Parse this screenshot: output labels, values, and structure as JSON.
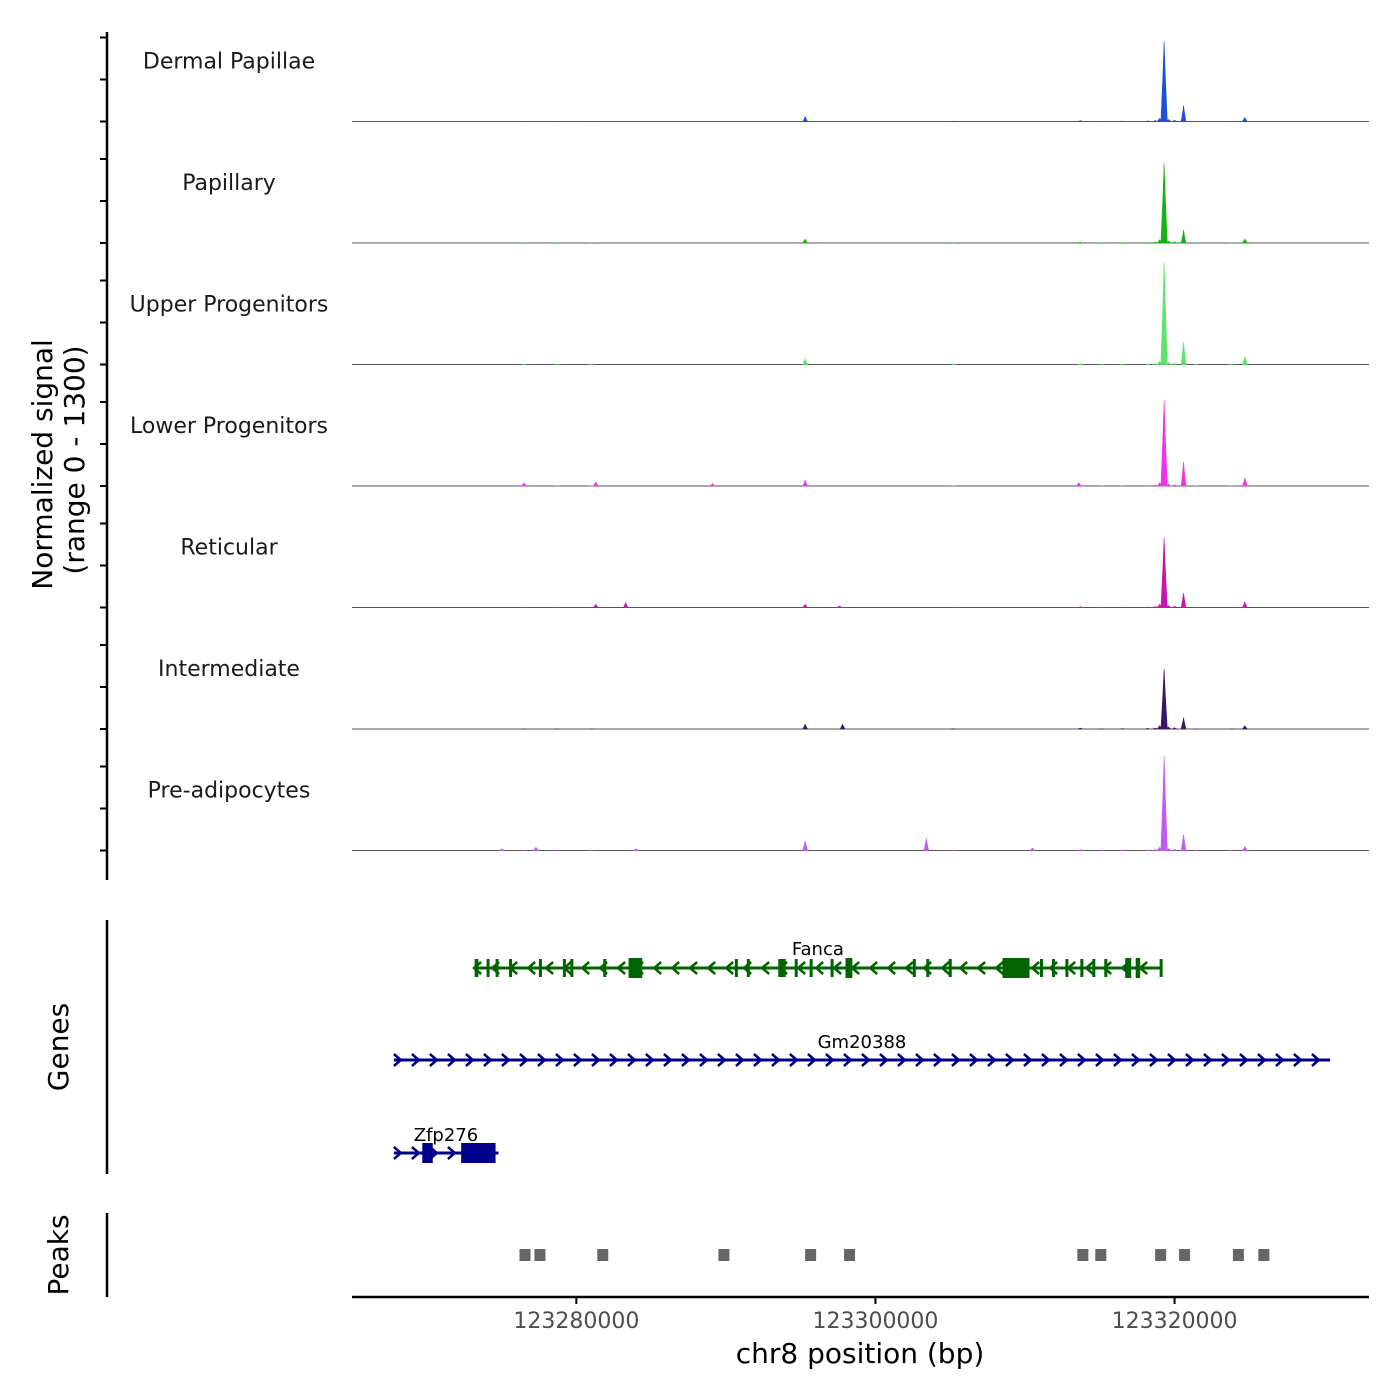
{
  "chart_data": {
    "type": "area",
    "subtype": "genome-coverage-tracks",
    "chromosome": "chr8",
    "xlim": [
      123265000,
      123333000
    ],
    "xticks": [
      123280000,
      123300000,
      123320000
    ],
    "xtick_labels": [
      "123280000",
      "123300000",
      "123320000"
    ],
    "xlabel": "chr8 position (bp)",
    "coverage_ylabel": "Normalized signal\n(range 0 - 1300)",
    "ylim": [
      0,
      1300
    ],
    "genes_label": "Genes",
    "peaks_label": "Peaks",
    "peak_template": [
      {
        "pos": 123276500,
        "h": 0.02
      },
      {
        "pos": 123278700,
        "h": 0.01
      },
      {
        "pos": 123281000,
        "h": 0.015
      },
      {
        "pos": 123295300,
        "h": 0.06
      },
      {
        "pos": 123305200,
        "h": 0.05
      },
      {
        "pos": 123313700,
        "h": 0.14
      },
      {
        "pos": 123315100,
        "h": 0.03
      },
      {
        "pos": 123316500,
        "h": 0.06
      },
      {
        "pos": 123318200,
        "h": 0.1
      },
      {
        "pos": 123318700,
        "h": 0.16
      },
      {
        "pos": 123319000,
        "h": 0.5
      },
      {
        "pos": 123319300,
        "h": 0.86
      },
      {
        "pos": 123319600,
        "h": 0.3
      },
      {
        "pos": 123320000,
        "h": 0.2
      },
      {
        "pos": 123320600,
        "h": 0.16
      },
      {
        "pos": 123321400,
        "h": 0.04
      },
      {
        "pos": 123323800,
        "h": 0.02
      },
      {
        "pos": 123324700,
        "h": 0.05
      }
    ],
    "series": [
      {
        "name": "Dermal Papillae",
        "color": "#1f4fd8",
        "peaks": [
          {
            "pos": 123295300,
            "h": 0.06
          },
          {
            "pos": 123319300,
            "h": 1.0
          },
          {
            "pos": 123320600,
            "h": 0.2
          },
          {
            "pos": 123324700,
            "h": 0.05
          }
        ]
      },
      {
        "name": "Papillary",
        "color": "#17b217",
        "peaks": [
          {
            "pos": 123295300,
            "h": 0.05
          },
          {
            "pos": 123319300,
            "h": 1.0
          },
          {
            "pos": 123320600,
            "h": 0.16
          },
          {
            "pos": 123324700,
            "h": 0.05
          }
        ]
      },
      {
        "name": "Upper Progenitors",
        "color": "#5fe36a",
        "peaks": [
          {
            "pos": 123295300,
            "h": 0.07
          },
          {
            "pos": 123319300,
            "h": 1.28
          },
          {
            "pos": 123320600,
            "h": 0.28
          },
          {
            "pos": 123324700,
            "h": 0.1
          }
        ]
      },
      {
        "name": "Lower Progenitors",
        "color": "#f232e8",
        "peaks": [
          {
            "pos": 123276500,
            "h": 0.04
          },
          {
            "pos": 123281300,
            "h": 0.05
          },
          {
            "pos": 123289100,
            "h": 0.03
          },
          {
            "pos": 123295300,
            "h": 0.07
          },
          {
            "pos": 123313600,
            "h": 0.04
          },
          {
            "pos": 123319300,
            "h": 1.07
          },
          {
            "pos": 123320600,
            "h": 0.3
          },
          {
            "pos": 123324700,
            "h": 0.1
          }
        ]
      },
      {
        "name": "Reticular",
        "color": "#c218b0",
        "peaks": [
          {
            "pos": 123281300,
            "h": 0.04
          },
          {
            "pos": 123283300,
            "h": 0.06
          },
          {
            "pos": 123295300,
            "h": 0.04
          },
          {
            "pos": 123297600,
            "h": 0.02
          },
          {
            "pos": 123319300,
            "h": 0.87
          },
          {
            "pos": 123320600,
            "h": 0.18
          },
          {
            "pos": 123324700,
            "h": 0.07
          }
        ]
      },
      {
        "name": "Intermediate",
        "color": "#3a1466",
        "peaks": [
          {
            "pos": 123295300,
            "h": 0.06
          },
          {
            "pos": 123297800,
            "h": 0.06
          },
          {
            "pos": 123319300,
            "h": 0.75
          },
          {
            "pos": 123320600,
            "h": 0.14
          },
          {
            "pos": 123324700,
            "h": 0.04
          }
        ]
      },
      {
        "name": "Pre-adipocytes",
        "color": "#c05cf2",
        "peaks": [
          {
            "pos": 123275000,
            "h": 0.02
          },
          {
            "pos": 123277300,
            "h": 0.04
          },
          {
            "pos": 123284000,
            "h": 0.02
          },
          {
            "pos": 123295300,
            "h": 0.12
          },
          {
            "pos": 123303400,
            "h": 0.15
          },
          {
            "pos": 123310500,
            "h": 0.03
          },
          {
            "pos": 123319300,
            "h": 1.18
          },
          {
            "pos": 123320600,
            "h": 0.2
          },
          {
            "pos": 123324700,
            "h": 0.05
          }
        ]
      }
    ],
    "genes": [
      {
        "name": "Fanca",
        "strand": "-",
        "color": "#006400",
        "start": 123273100,
        "end": 123319200,
        "exons": [
          [
            123273200,
            123273450
          ],
          [
            123274000,
            123274150
          ],
          [
            123274600,
            123274750
          ],
          [
            123275500,
            123275650
          ],
          [
            123277500,
            123277650
          ],
          [
            123279100,
            123279250
          ],
          [
            123279600,
            123279750
          ],
          [
            123281800,
            123282000
          ],
          [
            123283500,
            123284400
          ],
          [
            123290600,
            123290750
          ],
          [
            123291400,
            123291550
          ],
          [
            123293500,
            123294000
          ],
          [
            123294600,
            123294800
          ],
          [
            123295600,
            123295750
          ],
          [
            123297000,
            123297150
          ],
          [
            123298000,
            123298450
          ],
          [
            123302500,
            123302650
          ],
          [
            123303400,
            123303550
          ],
          [
            123304900,
            123305050
          ],
          [
            123308500,
            123310300
          ],
          [
            123311000,
            123311200
          ],
          [
            123311800,
            123311950
          ],
          [
            123312700,
            123312850
          ],
          [
            123313700,
            123313850
          ],
          [
            123314500,
            123314650
          ],
          [
            123315300,
            123315450
          ],
          [
            123319000,
            123319200
          ]
        ],
        "big_exons": [
          [
            123283500,
            123284400
          ],
          [
            123298000,
            123298450
          ],
          [
            123308500,
            123310300
          ],
          [
            123316700,
            123317100
          ],
          [
            123317400,
            123317700
          ]
        ]
      },
      {
        "name": "Gm20388",
        "strand": "+",
        "color": "#00008b",
        "start": 123267800,
        "end": 123330400,
        "exons": [],
        "big_exons": []
      },
      {
        "name": "Zfp276",
        "strand": "+",
        "color": "#00008b",
        "start": 123267800,
        "end": 123274800,
        "exons": [],
        "big_exons": [
          [
            123269700,
            123270400
          ],
          [
            123272300,
            123274600
          ]
        ]
      }
    ],
    "peaks": [
      [
        123276200,
        123276900
      ],
      [
        123277200,
        123277900
      ],
      [
        123281400,
        123282100
      ],
      [
        123289500,
        123290200
      ],
      [
        123295300,
        123296000
      ],
      [
        123297900,
        123298600
      ],
      [
        123313500,
        123314200
      ],
      [
        123314700,
        123315400
      ],
      [
        123318700,
        123319400
      ],
      [
        123320300,
        123321000
      ],
      [
        123323900,
        123324600
      ],
      [
        123325600,
        123326300
      ]
    ]
  }
}
